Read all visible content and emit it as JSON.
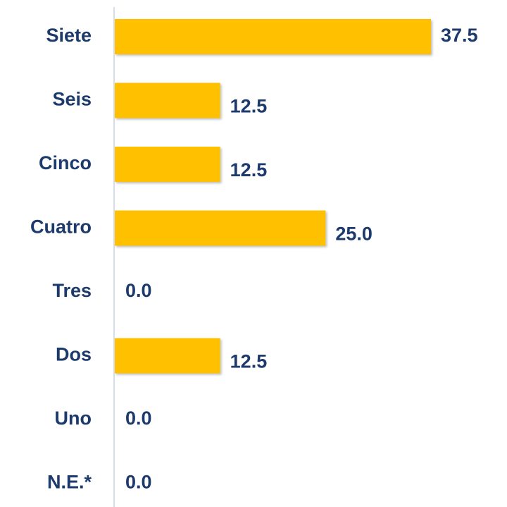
{
  "chart_data": {
    "type": "bar",
    "orientation": "horizontal",
    "categories": [
      "Siete",
      "Seis",
      "Cinco",
      "Cuatro",
      "Tres",
      "Dos",
      "Uno",
      "N.E.*"
    ],
    "values": [
      37.5,
      12.5,
      12.5,
      25,
      0,
      12.5,
      0,
      0
    ],
    "value_labels": [
      "37.5",
      "12.5",
      "12.5",
      "25.0",
      "0.0",
      "12.5",
      "0.0",
      "0.0"
    ],
    "color": "#FFC000"
  }
}
